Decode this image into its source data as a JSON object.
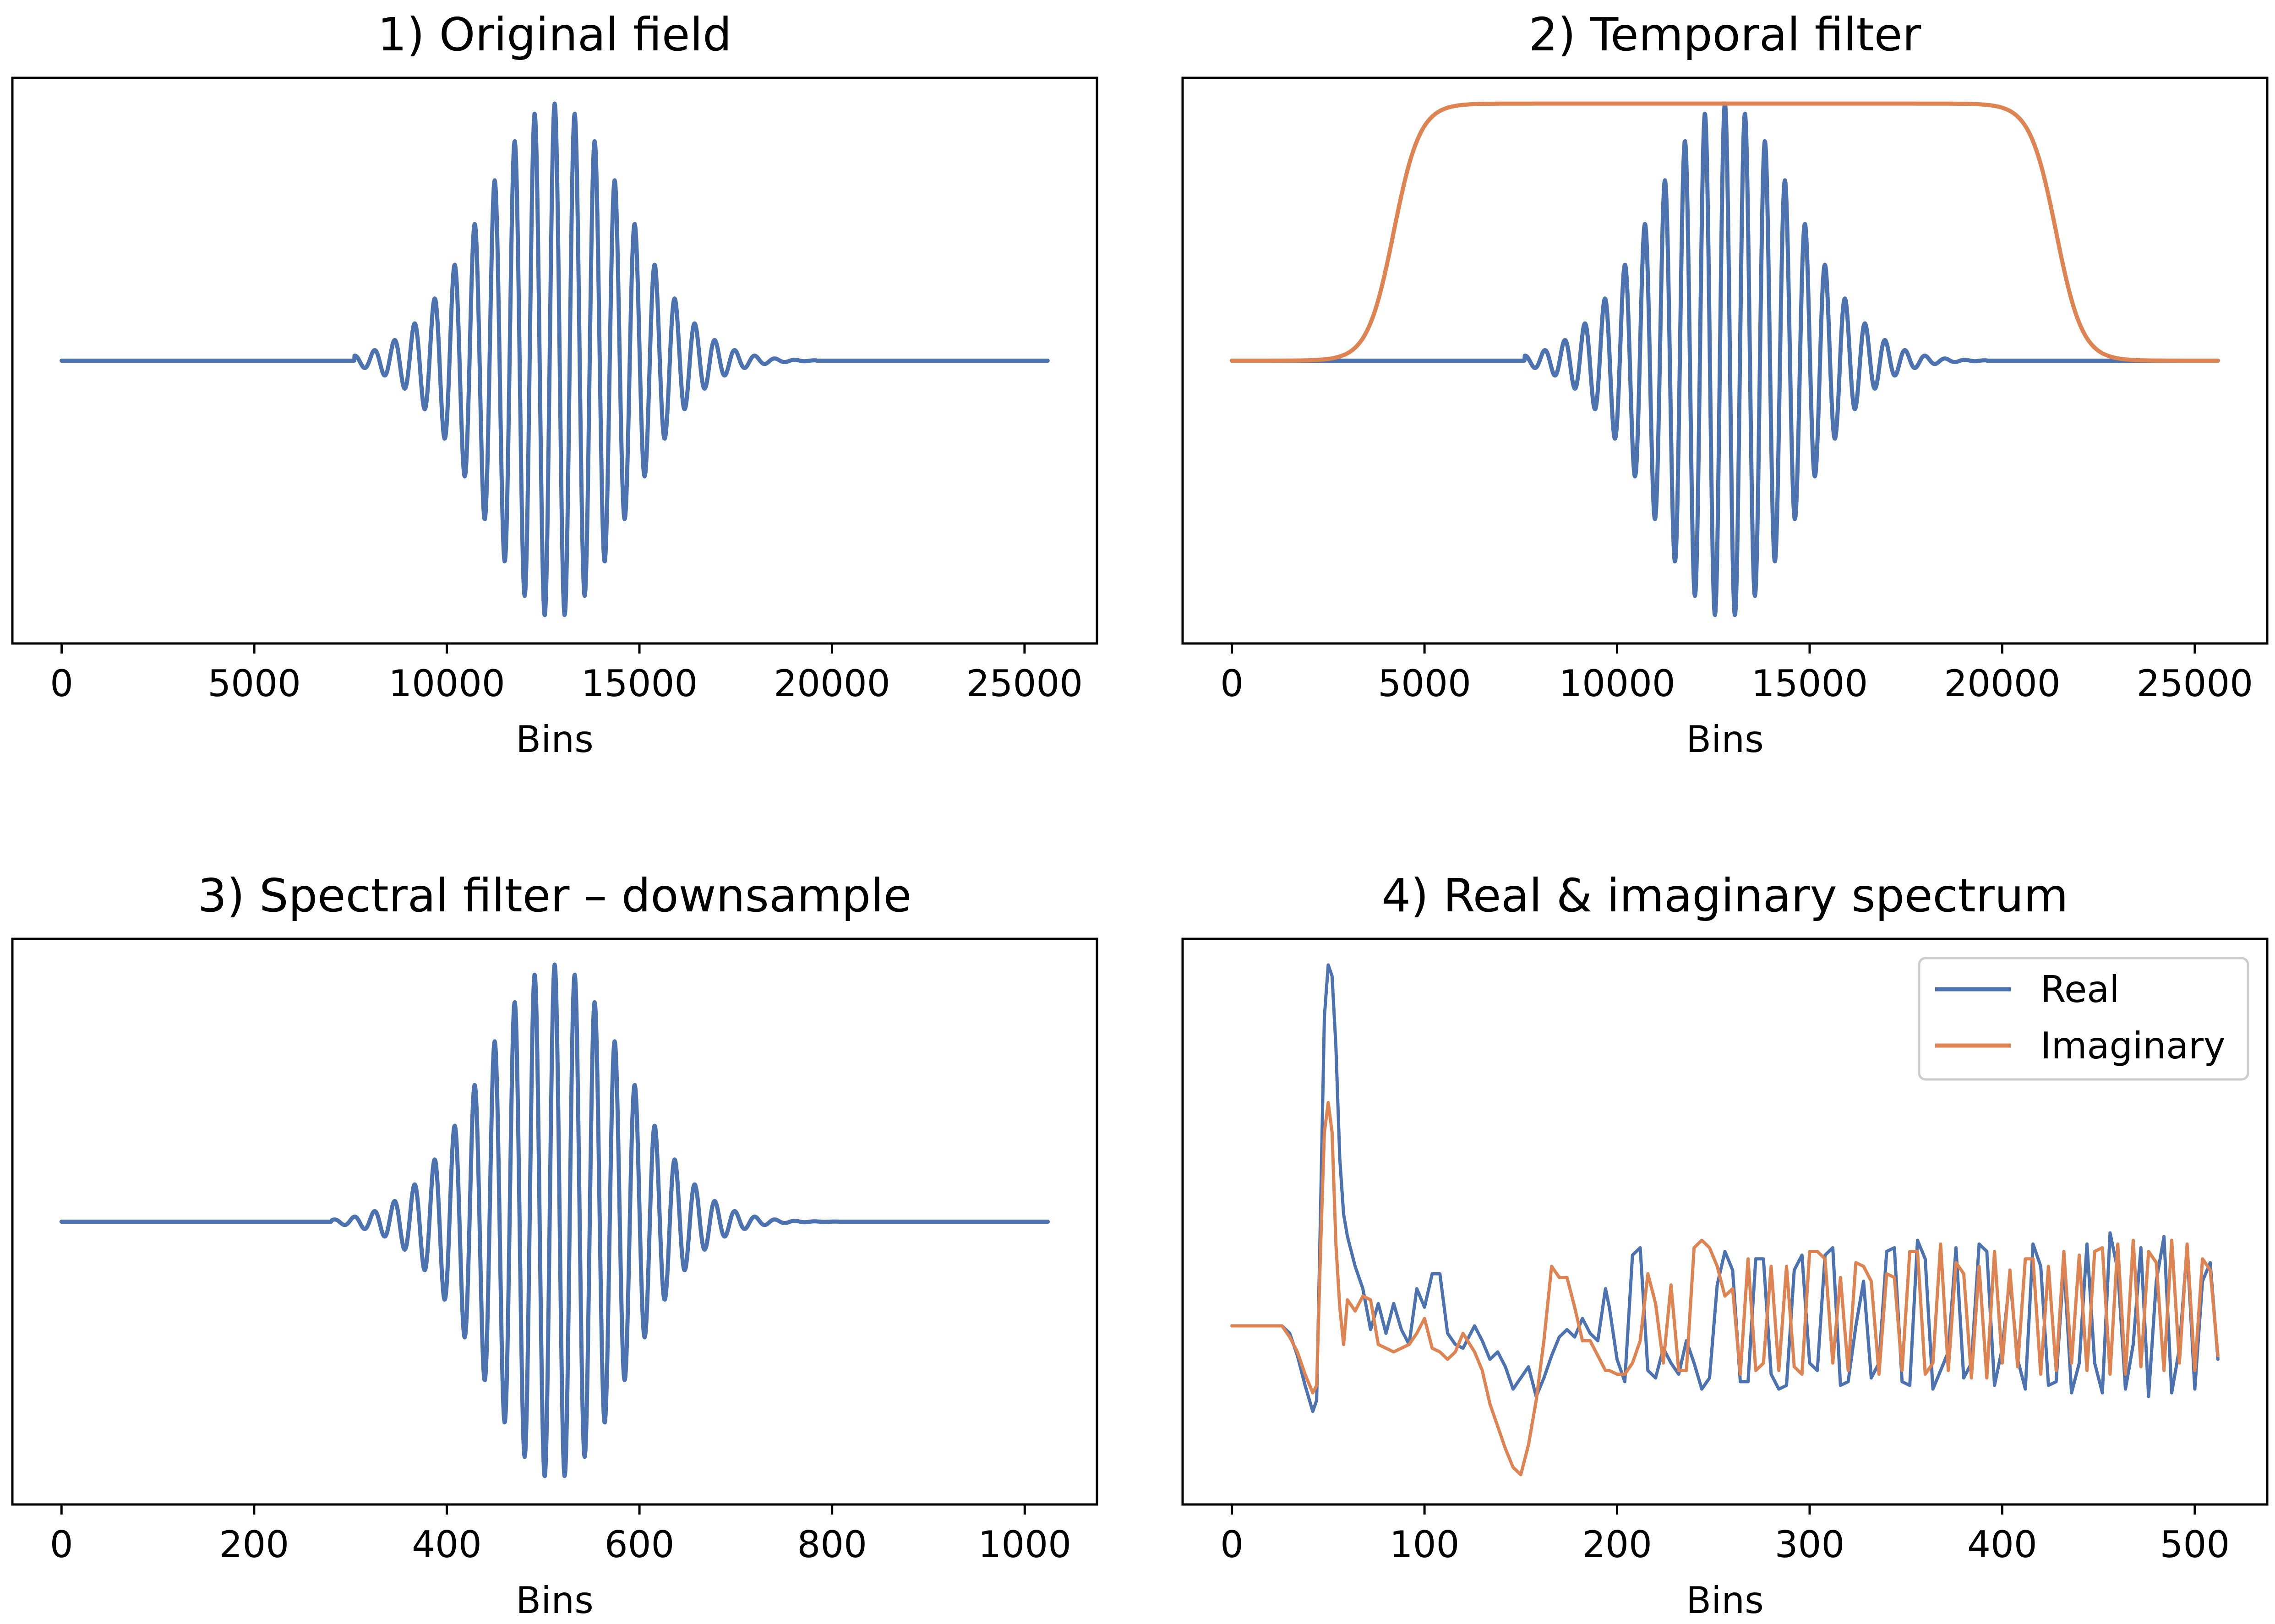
{
  "chart_data": [
    {
      "type": "line",
      "title": "1) Original field",
      "xlabel": "Bins",
      "ylabel": "",
      "xlim": [
        -1280,
        26880
      ],
      "ylim": [
        -1.1,
        1.1
      ],
      "xticks": [
        0,
        5000,
        10000,
        15000,
        20000,
        25000
      ],
      "yticks_visible": false,
      "grid": false,
      "legend": null,
      "series": [
        {
          "color": "#4c72b0",
          "shape": "chirped-gaussian-wavepacket",
          "x_start": 0,
          "x_end": 25600,
          "center": 12800,
          "envelope_sigma": 1850,
          "amplitude": 1.0,
          "period": 520,
          "baseline_until": 7600,
          "baseline_from": 19600
        }
      ]
    },
    {
      "type": "line",
      "title": "2) Temporal filter",
      "xlabel": "Bins",
      "ylabel": "",
      "xlim": [
        -1280,
        26880
      ],
      "ylim": [
        -1.1,
        1.1
      ],
      "xticks": [
        0,
        5000,
        10000,
        15000,
        20000,
        25000
      ],
      "yticks_visible": false,
      "grid": false,
      "legend": null,
      "series": [
        {
          "color": "#4c72b0",
          "shape": "chirped-gaussian-wavepacket",
          "x_start": 0,
          "x_end": 25600,
          "center": 12800,
          "envelope_sigma": 1850,
          "amplitude": 1.0,
          "period": 520,
          "baseline_until": 7600,
          "baseline_from": 19600
        },
        {
          "color": "#dd8452",
          "shape": "super-gaussian-window",
          "x_start": 0,
          "x_end": 25600,
          "rise_center": 4200,
          "fall_center": 21400,
          "edge_width": 620,
          "amplitude": 1.0
        }
      ]
    },
    {
      "type": "line",
      "title": "3) Spectral filter – downsample",
      "xlabel": "Bins",
      "ylabel": "",
      "xlim": [
        -51,
        1075
      ],
      "ylim": [
        -1.1,
        1.1
      ],
      "xticks": [
        0,
        200,
        400,
        600,
        800,
        1000
      ],
      "yticks_visible": false,
      "grid": false,
      "legend": null,
      "series": [
        {
          "color": "#4c72b0",
          "shape": "chirped-gaussian-wavepacket",
          "x_start": 0,
          "x_end": 1024,
          "center": 512,
          "envelope_sigma": 74,
          "amplitude": 1.0,
          "period": 20.8,
          "baseline_until": 280,
          "baseline_from": 810
        }
      ]
    },
    {
      "type": "line",
      "title": "4) Real & imaginary spectrum",
      "xlabel": "Bins",
      "ylabel": "",
      "xlim": [
        -25.6,
        537.6
      ],
      "ylim": [
        -0.48,
        1.04
      ],
      "xticks": [
        0,
        100,
        200,
        300,
        400,
        500
      ],
      "yticks_visible": false,
      "grid": false,
      "legend": {
        "location": "upper right",
        "entries": [
          "Real",
          "Imaginary"
        ]
      },
      "series": [
        {
          "name": "Real",
          "color": "#4c72b0",
          "x": [
            0,
            20,
            26,
            30,
            34,
            38,
            42,
            44,
            46,
            48,
            50,
            52,
            54,
            56,
            58,
            60,
            64,
            68,
            72,
            76,
            80,
            84,
            88,
            92,
            96,
            100,
            104,
            108,
            112,
            116,
            120,
            126,
            130,
            134,
            138,
            142,
            146,
            150,
            154,
            158,
            162,
            166,
            170,
            174,
            178,
            182,
            186,
            190,
            194,
            196,
            200,
            204,
            208,
            212,
            216,
            220,
            224,
            228,
            232,
            236,
            240,
            244,
            248,
            252,
            256,
            260,
            264,
            268,
            272,
            276,
            280,
            284,
            288,
            292,
            296,
            300,
            304,
            308,
            312,
            316,
            320,
            324,
            328,
            332,
            336,
            340,
            344,
            348,
            352,
            356,
            360,
            364,
            368,
            372,
            376,
            380,
            384,
            388,
            392,
            396,
            400,
            404,
            408,
            412,
            416,
            420,
            424,
            428,
            432,
            436,
            440,
            444,
            448,
            452,
            456,
            460,
            464,
            468,
            472,
            476,
            480,
            484,
            488,
            492,
            496,
            500,
            504,
            508,
            512
          ],
          "y": [
            0,
            0,
            0,
            -0.02,
            -0.08,
            -0.16,
            -0.23,
            -0.2,
            0.3,
            0.83,
            0.97,
            0.94,
            0.75,
            0.45,
            0.3,
            0.24,
            0.16,
            0.1,
            -0.01,
            0.06,
            -0.02,
            0.06,
            -0.01,
            -0.05,
            0.1,
            0.05,
            0.14,
            0.14,
            -0.02,
            -0.05,
            -0.06,
            0.0,
            -0.04,
            -0.09,
            -0.07,
            -0.11,
            -0.17,
            -0.14,
            -0.11,
            -0.19,
            -0.14,
            -0.08,
            -0.03,
            -0.01,
            -0.03,
            0.02,
            -0.02,
            -0.04,
            0.1,
            0.05,
            -0.09,
            -0.15,
            0.19,
            0.21,
            -0.12,
            -0.14,
            -0.06,
            -0.1,
            -0.13,
            -0.04,
            -0.1,
            -0.17,
            -0.14,
            0.11,
            0.2,
            0.15,
            -0.15,
            -0.15,
            0.18,
            0.18,
            -0.13,
            -0.17,
            -0.16,
            0.15,
            0.19,
            -0.1,
            -0.12,
            0.19,
            0.21,
            -0.16,
            -0.15,
            0.0,
            0.12,
            -0.14,
            -0.1,
            0.2,
            0.21,
            -0.15,
            -0.16,
            0.23,
            0.18,
            -0.17,
            -0.12,
            -0.07,
            0.21,
            -0.14,
            -0.1,
            0.22,
            0.2,
            -0.16,
            -0.06,
            0.13,
            -0.09,
            -0.17,
            0.22,
            0.16,
            -0.16,
            -0.15,
            0.17,
            -0.18,
            -0.1,
            0.22,
            -0.1,
            -0.18,
            0.25,
            0.15,
            -0.17,
            -0.05,
            0.21,
            -0.19,
            0.12,
            0.24,
            -0.18,
            -0.06,
            0.21,
            -0.17,
            0.12,
            0.17,
            -0.09
          ],
          "line_width": 7
        },
        {
          "name": "Imaginary",
          "color": "#dd8452",
          "x": [
            0,
            20,
            26,
            30,
            34,
            38,
            42,
            44,
            46,
            48,
            50,
            52,
            54,
            56,
            58,
            60,
            64,
            68,
            72,
            76,
            80,
            84,
            88,
            92,
            96,
            100,
            104,
            108,
            112,
            116,
            120,
            126,
            130,
            134,
            138,
            142,
            146,
            150,
            154,
            158,
            162,
            166,
            170,
            174,
            178,
            182,
            186,
            190,
            194,
            196,
            200,
            204,
            208,
            212,
            216,
            220,
            224,
            228,
            232,
            236,
            240,
            244,
            248,
            252,
            256,
            260,
            264,
            268,
            272,
            276,
            280,
            284,
            288,
            292,
            296,
            300,
            304,
            308,
            312,
            316,
            320,
            324,
            328,
            332,
            336,
            340,
            344,
            348,
            352,
            356,
            360,
            364,
            368,
            372,
            376,
            380,
            384,
            388,
            392,
            396,
            400,
            404,
            408,
            412,
            416,
            420,
            424,
            428,
            432,
            436,
            440,
            444,
            448,
            452,
            456,
            460,
            464,
            468,
            472,
            476,
            480,
            484,
            488,
            492,
            496,
            500,
            504,
            508,
            512
          ],
          "y": [
            0,
            0,
            0,
            -0.03,
            -0.07,
            -0.13,
            -0.18,
            -0.16,
            0.2,
            0.52,
            0.6,
            0.52,
            0.22,
            0.05,
            -0.05,
            0.07,
            0.04,
            0.08,
            0.07,
            -0.05,
            -0.06,
            -0.07,
            -0.06,
            -0.05,
            -0.02,
            0.02,
            -0.06,
            -0.07,
            -0.09,
            -0.07,
            -0.02,
            -0.07,
            -0.12,
            -0.21,
            -0.27,
            -0.33,
            -0.38,
            -0.4,
            -0.32,
            -0.2,
            -0.04,
            0.16,
            0.13,
            0.13,
            0.05,
            -0.04,
            -0.04,
            -0.08,
            -0.12,
            -0.12,
            -0.13,
            -0.13,
            -0.1,
            -0.04,
            0.14,
            0.06,
            -0.1,
            0.11,
            -0.12,
            -0.12,
            0.21,
            0.23,
            0.21,
            0.16,
            0.08,
            0.1,
            -0.13,
            0.18,
            -0.12,
            -0.1,
            0.16,
            -0.12,
            0.16,
            -0.11,
            -0.13,
            0.2,
            0.2,
            0.18,
            -0.1,
            0.13,
            -0.12,
            0.17,
            0.16,
            0.12,
            -0.13,
            0.14,
            0.13,
            -0.12,
            0.2,
            0.2,
            -0.13,
            -0.1,
            0.22,
            -0.12,
            0.17,
            0.14,
            -0.14,
            0.16,
            -0.14,
            0.2,
            -0.1,
            0.15,
            -0.11,
            0.18,
            0.18,
            -0.13,
            0.16,
            -0.12,
            0.2,
            -0.1,
            0.19,
            -0.12,
            0.2,
            0.21,
            -0.13,
            0.22,
            -0.13,
            0.23,
            -0.11,
            0.2,
            0.17,
            -0.12,
            0.23,
            -0.1,
            0.22,
            -0.12,
            0.18,
            0.15,
            -0.08
          ],
          "line_width": 7
        }
      ]
    }
  ]
}
